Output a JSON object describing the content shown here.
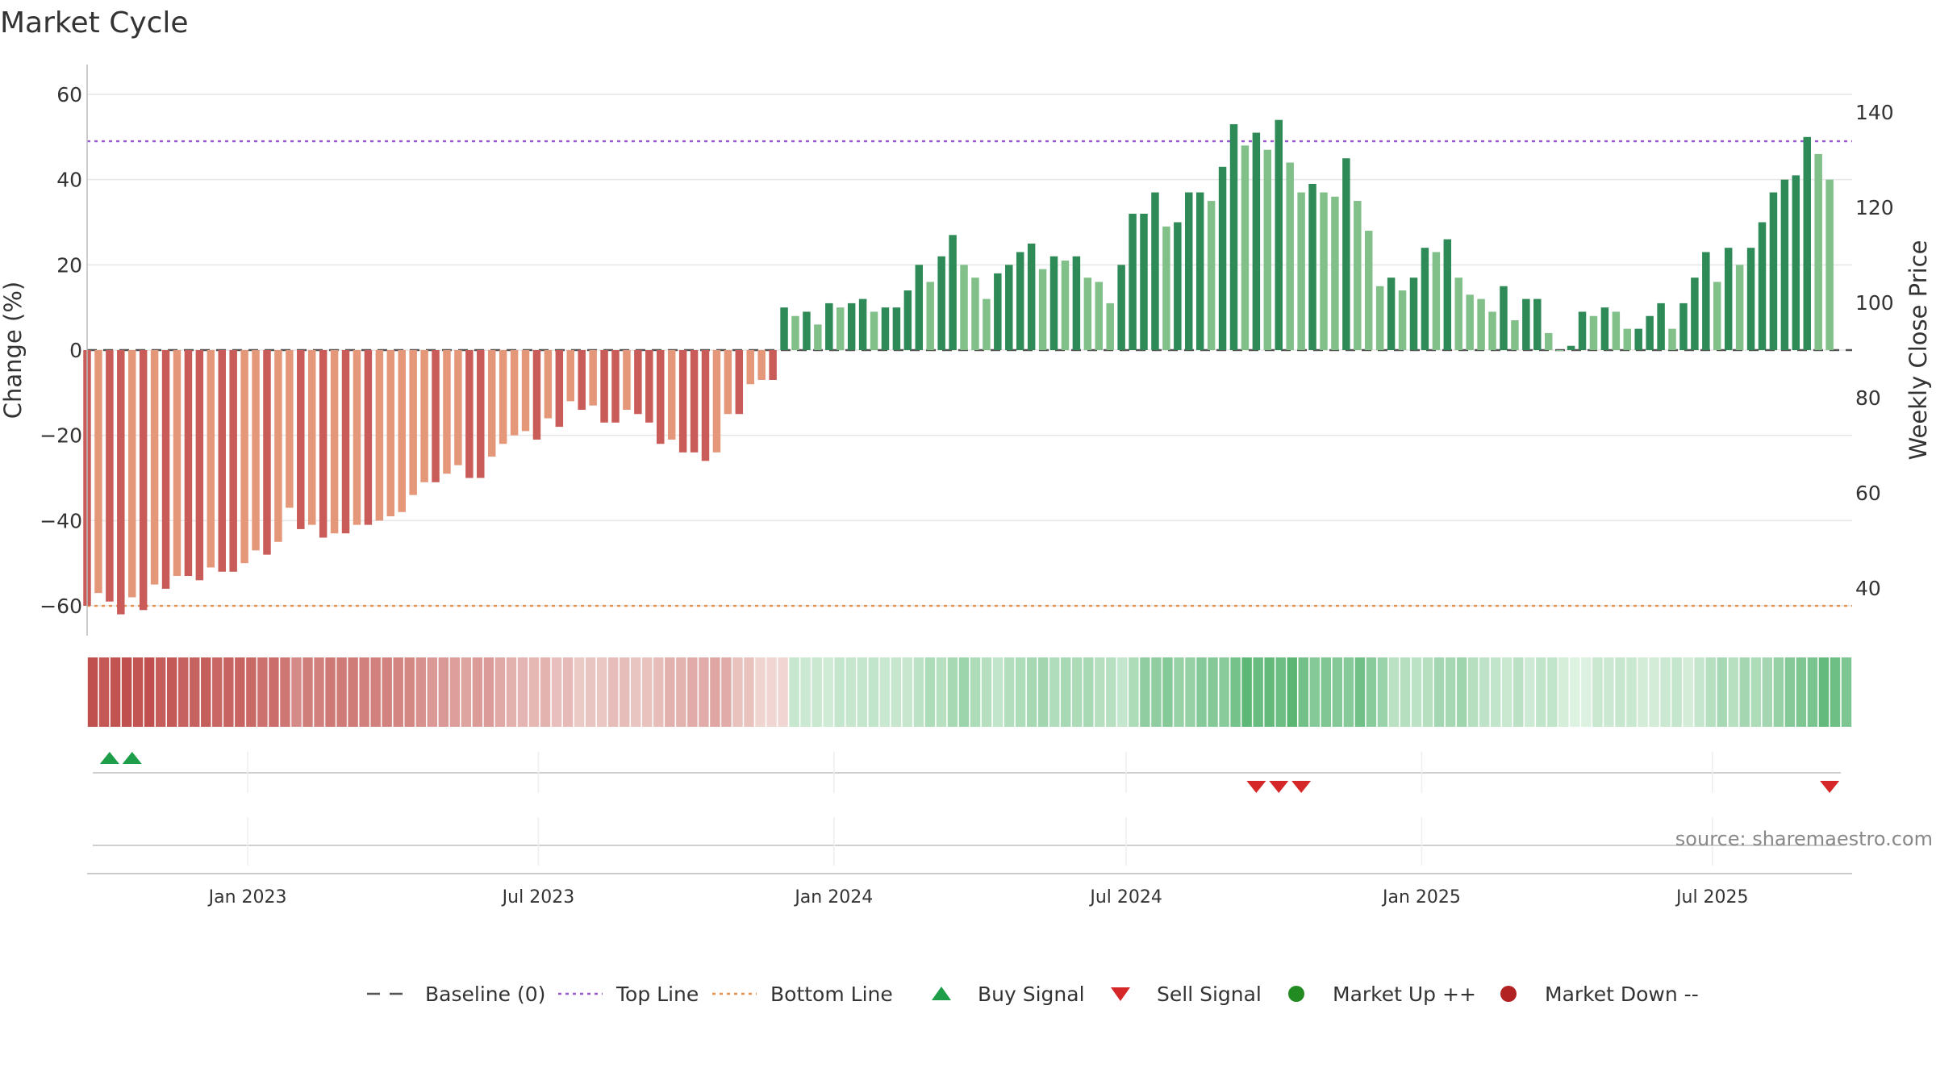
{
  "chart_data": {
    "type": "bar",
    "title": "Market Cycle",
    "ylabel": "Change (%)",
    "y2label": "Weekly Close Price",
    "source": "source: sharemaestro.com",
    "ylim": [
      -67,
      67
    ],
    "y2lim": [
      30,
      150
    ],
    "yticks": [
      60,
      40,
      20,
      0,
      -20,
      -40,
      -60
    ],
    "ytick_labels": [
      "60",
      "40",
      "20",
      "0",
      "−20",
      "−40",
      "−60"
    ],
    "y2ticks": [
      140,
      120,
      100,
      80,
      60,
      40
    ],
    "y2tick_labels": [
      "140",
      "120",
      "100",
      "80",
      "60",
      "40"
    ],
    "x_start": "2022-09-23",
    "x_end": "2025-09-26",
    "xticks": [
      {
        "date": "2023-01-01",
        "label": "Jan 2023"
      },
      {
        "date": "2023-07-01",
        "label": "Jul 2023"
      },
      {
        "date": "2024-01-01",
        "label": "Jan 2024"
      },
      {
        "date": "2024-07-01",
        "label": "Jul 2024"
      },
      {
        "date": "2025-01-01",
        "label": "Jan 2025"
      },
      {
        "date": "2025-07-01",
        "label": "Jul 2025"
      }
    ],
    "first_week": "2022-09-23",
    "values": [
      -60,
      -57,
      -59,
      -62,
      -58,
      -61,
      -55,
      -56,
      -53,
      -53,
      -54,
      -51,
      -52,
      -52,
      -50,
      -47,
      -48,
      -45,
      -37,
      -42,
      -41,
      -44,
      -43,
      -43,
      -41,
      -41,
      -40,
      -39,
      -38,
      -34,
      -31,
      -31,
      -29,
      -27,
      -30,
      -30,
      -25,
      -22,
      -20,
      -19,
      -21,
      -16,
      -18,
      -12,
      -14,
      -13,
      -17,
      -17,
      -14,
      -15,
      -17,
      -22,
      -21,
      -24,
      -24,
      -26,
      -24,
      -15,
      -15,
      -8,
      -7,
      -7,
      10,
      8,
      9,
      6,
      11,
      10,
      11,
      12,
      9,
      10,
      10,
      14,
      20,
      16,
      22,
      27,
      20,
      17,
      12,
      18,
      20,
      23,
      25,
      19,
      22,
      21,
      22,
      17,
      16,
      11,
      20,
      32,
      32,
      37,
      29,
      30,
      37,
      37,
      35,
      43,
      53,
      48,
      51,
      47,
      54,
      44,
      37,
      39,
      37,
      36,
      45,
      35,
      28,
      15,
      17,
      14,
      17,
      24,
      23,
      26,
      17,
      13,
      12,
      9,
      15,
      7,
      12,
      12,
      4,
      0,
      1,
      9,
      8,
      10,
      9,
      5,
      5,
      8,
      11,
      5,
      11,
      17,
      23,
      16,
      24,
      20,
      24,
      30,
      37,
      40,
      41,
      50,
      46,
      40
    ],
    "reference_lines": [
      {
        "name": "Baseline (0)",
        "value": 0,
        "color": "#555555",
        "style": "dash"
      },
      {
        "name": "Top Line",
        "value": 49,
        "color": "#9b59d0",
        "style": "dot"
      },
      {
        "name": "Bottom Line",
        "value": -60,
        "color": "#e8914f",
        "style": "dot"
      }
    ],
    "buy_signals": [
      "2022-10-07",
      "2022-10-21"
    ],
    "sell_signals": [
      "2024-09-20",
      "2024-10-04",
      "2024-10-18",
      "2025-09-12"
    ],
    "colors": {
      "neg_dark": "#c95b58",
      "neg_light": "#e5977a",
      "pos_dark": "#2e8a57",
      "pos_light": "#82c08a",
      "buy": "#1f9e4a",
      "sell": "#d62728",
      "market_up": "#228b22",
      "market_down": "#b22222",
      "grid": "#e6e6e6"
    }
  },
  "legend": [
    {
      "label": "Baseline (0)",
      "symbol": "dash-line",
      "color": "#555555"
    },
    {
      "label": "Top Line",
      "symbol": "dot-line",
      "color": "#9b59d0"
    },
    {
      "label": "Bottom Line",
      "symbol": "dot-line",
      "color": "#e8914f"
    },
    {
      "label": "Buy Signal",
      "symbol": "triangle-up",
      "color": "#1f9e4a"
    },
    {
      "label": "Sell Signal",
      "symbol": "triangle-down",
      "color": "#d62728"
    },
    {
      "label": "Market Up ++",
      "symbol": "circle",
      "color": "#228b22"
    },
    {
      "label": "Market Down --",
      "symbol": "circle",
      "color": "#b22222"
    }
  ]
}
